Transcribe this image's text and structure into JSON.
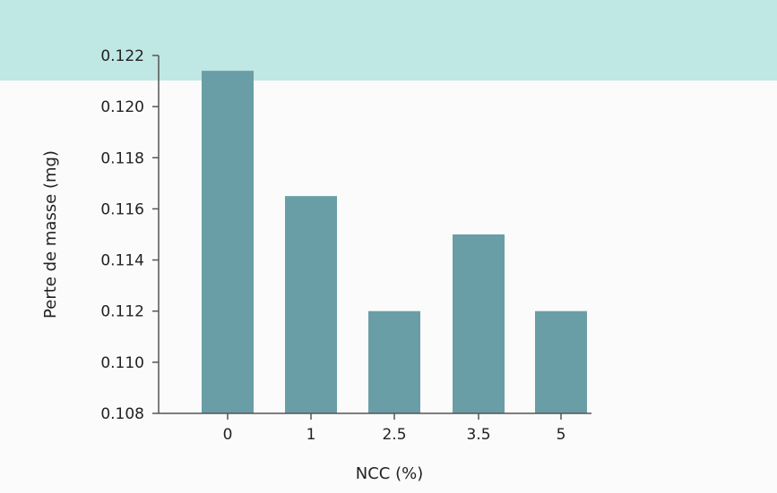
{
  "chart_data": {
    "type": "bar",
    "categories": [
      "0",
      "1",
      "2.5",
      "3.5",
      "5"
    ],
    "values": [
      0.1214,
      0.1165,
      0.112,
      0.115,
      0.112
    ],
    "ylabel": "Perte de masse (mg)",
    "xlabel": "NCC (%)",
    "ylim": [
      0.108,
      0.122
    ],
    "yticks": [
      0.108,
      0.11,
      0.112,
      0.114,
      0.116,
      0.118,
      0.12,
      0.122
    ],
    "ytick_labels": [
      "0.108",
      "0.110",
      "0.112",
      "0.114",
      "0.116",
      "0.118",
      "0.120",
      "0.122"
    ],
    "grid": false,
    "bar_color": "#6a9ea6",
    "axis_color": "#555555"
  }
}
